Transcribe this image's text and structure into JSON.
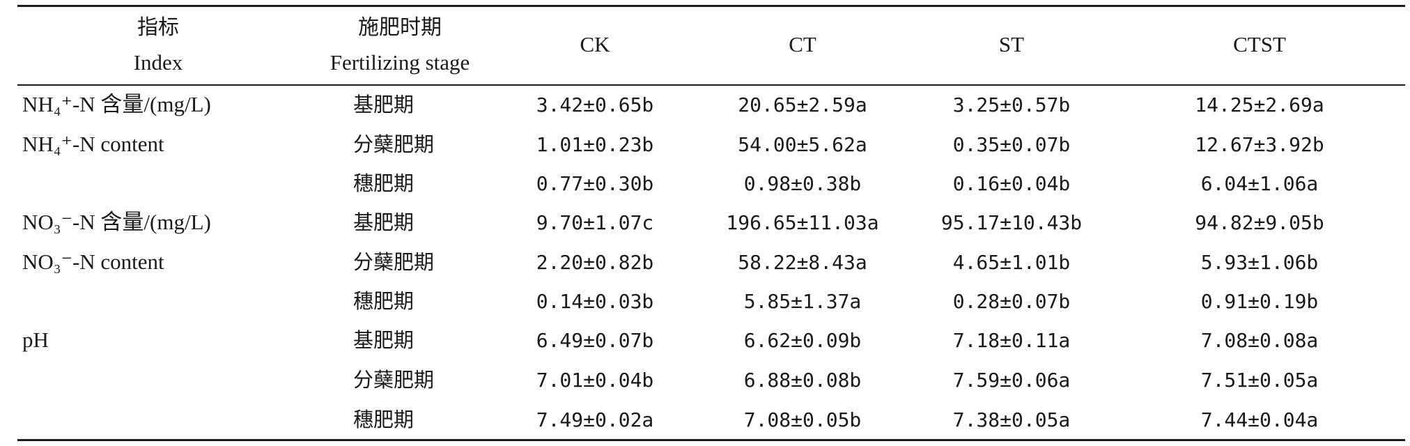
{
  "header": {
    "index_cn": "指标",
    "index_en": "Index",
    "stage_cn": "施肥时期",
    "stage_en": "Fertilizing stage",
    "ck": "CK",
    "ct": "CT",
    "st": "ST",
    "ctst": "CTST"
  },
  "index_labels": {
    "nh4_cn": "NH₄⁺-N 含量/(mg/L)",
    "nh4_en": "NH₄⁺-N content",
    "no3_cn": "NO₃⁻-N 含量/(mg/L)",
    "no3_en": "NO₃⁻-N content",
    "ph": "pH"
  },
  "rows": [
    {
      "stage": "基肥期",
      "ck": "3.42±0.65b",
      "ct": "20.65±2.59a",
      "st": "3.25±0.57b",
      "ctst": "14.25±2.69a"
    },
    {
      "stage": "分蘖肥期",
      "ck": "1.01±0.23b",
      "ct": "54.00±5.62a",
      "st": "0.35±0.07b",
      "ctst": "12.67±3.92b"
    },
    {
      "stage": "穗肥期",
      "ck": "0.77±0.30b",
      "ct": "0.98±0.38b",
      "st": "0.16±0.04b",
      "ctst": "6.04±1.06a"
    },
    {
      "stage": "基肥期",
      "ck": "9.70±1.07c",
      "ct": "196.65±11.03a",
      "st": "95.17±10.43b",
      "ctst": "94.82±9.05b"
    },
    {
      "stage": "分蘖肥期",
      "ck": "2.20±0.82b",
      "ct": "58.22±8.43a",
      "st": "4.65±1.01b",
      "ctst": "5.93±1.06b"
    },
    {
      "stage": "穗肥期",
      "ck": "0.14±0.03b",
      "ct": "5.85±1.37a",
      "st": "0.28±0.07b",
      "ctst": "0.91±0.19b"
    },
    {
      "stage": "基肥期",
      "ck": "6.49±0.07b",
      "ct": "6.62±0.09b",
      "st": "7.18±0.11a",
      "ctst": "7.08±0.08a"
    },
    {
      "stage": "分蘖肥期",
      "ck": "7.01±0.04b",
      "ct": "6.88±0.08b",
      "st": "7.59±0.06a",
      "ctst": "7.51±0.05a"
    },
    {
      "stage": "穗肥期",
      "ck": "7.49±0.02a",
      "ct": "7.08±0.05b",
      "st": "7.38±0.05a",
      "ctst": "7.44±0.04a"
    }
  ]
}
